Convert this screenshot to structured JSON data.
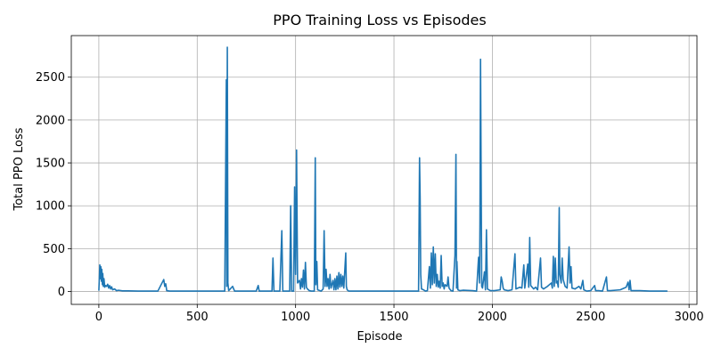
{
  "chart_data": {
    "type": "line",
    "title": "PPO Training Loss vs Episodes",
    "xlabel": "Episode",
    "ylabel": "Total PPO Loss",
    "xlim": [
      -140,
      3040
    ],
    "ylim": [
      -150,
      2985
    ],
    "xticks": [
      0,
      500,
      1000,
      1500,
      2000,
      2500,
      3000
    ],
    "yticks": [
      0,
      500,
      1000,
      1500,
      2000,
      2500
    ],
    "grid": true,
    "series": [
      {
        "color": "#1f77b4",
        "points": [
          [
            0,
            10
          ],
          [
            5,
            310
          ],
          [
            8,
            150
          ],
          [
            10,
            290
          ],
          [
            13,
            120
          ],
          [
            15,
            260
          ],
          [
            18,
            80
          ],
          [
            20,
            210
          ],
          [
            23,
            60
          ],
          [
            26,
            150
          ],
          [
            30,
            50
          ],
          [
            35,
            70
          ],
          [
            40,
            60
          ],
          [
            45,
            85
          ],
          [
            50,
            40
          ],
          [
            55,
            70
          ],
          [
            60,
            30
          ],
          [
            65,
            55
          ],
          [
            70,
            20
          ],
          [
            80,
            30
          ],
          [
            90,
            10
          ],
          [
            100,
            15
          ],
          [
            120,
            8
          ],
          [
            150,
            8
          ],
          [
            200,
            5
          ],
          [
            300,
            5
          ],
          [
            330,
            140
          ],
          [
            335,
            60
          ],
          [
            340,
            90
          ],
          [
            345,
            10
          ],
          [
            360,
            5
          ],
          [
            400,
            5
          ],
          [
            450,
            5
          ],
          [
            500,
            5
          ],
          [
            600,
            5
          ],
          [
            640,
            5
          ],
          [
            648,
            2470
          ],
          [
            650,
            60
          ],
          [
            653,
            2850
          ],
          [
            656,
            100
          ],
          [
            660,
            10
          ],
          [
            680,
            60
          ],
          [
            690,
            5
          ],
          [
            750,
            5
          ],
          [
            800,
            5
          ],
          [
            810,
            70
          ],
          [
            815,
            5
          ],
          [
            880,
            5
          ],
          [
            885,
            390
          ],
          [
            890,
            5
          ],
          [
            920,
            5
          ],
          [
            930,
            710
          ],
          [
            935,
            5
          ],
          [
            970,
            5
          ],
          [
            975,
            1000
          ],
          [
            980,
            5
          ],
          [
            990,
            5
          ],
          [
            995,
            1220
          ],
          [
            1000,
            200
          ],
          [
            1005,
            1650
          ],
          [
            1010,
            100
          ],
          [
            1020,
            130
          ],
          [
            1025,
            30
          ],
          [
            1030,
            150
          ],
          [
            1035,
            50
          ],
          [
            1040,
            250
          ],
          [
            1045,
            30
          ],
          [
            1050,
            340
          ],
          [
            1055,
            50
          ],
          [
            1060,
            30
          ],
          [
            1070,
            10
          ],
          [
            1080,
            5
          ],
          [
            1095,
            5
          ],
          [
            1100,
            1560
          ],
          [
            1103,
            80
          ],
          [
            1108,
            350
          ],
          [
            1112,
            20
          ],
          [
            1130,
            5
          ],
          [
            1140,
            30
          ],
          [
            1145,
            710
          ],
          [
            1150,
            60
          ],
          [
            1155,
            260
          ],
          [
            1160,
            60
          ],
          [
            1165,
            150
          ],
          [
            1170,
            30
          ],
          [
            1175,
            200
          ],
          [
            1180,
            40
          ],
          [
            1190,
            130
          ],
          [
            1195,
            20
          ],
          [
            1200,
            150
          ],
          [
            1205,
            20
          ],
          [
            1210,
            180
          ],
          [
            1215,
            30
          ],
          [
            1220,
            220
          ],
          [
            1225,
            50
          ],
          [
            1230,
            200
          ],
          [
            1235,
            60
          ],
          [
            1240,
            180
          ],
          [
            1245,
            40
          ],
          [
            1255,
            450
          ],
          [
            1258,
            60
          ],
          [
            1262,
            20
          ],
          [
            1270,
            5
          ],
          [
            1300,
            5
          ],
          [
            1400,
            5
          ],
          [
            1500,
            5
          ],
          [
            1600,
            5
          ],
          [
            1625,
            5
          ],
          [
            1630,
            1560
          ],
          [
            1633,
            1100
          ],
          [
            1636,
            200
          ],
          [
            1640,
            30
          ],
          [
            1650,
            20
          ],
          [
            1660,
            5
          ],
          [
            1670,
            10
          ],
          [
            1680,
            290
          ],
          [
            1685,
            40
          ],
          [
            1690,
            450
          ],
          [
            1695,
            80
          ],
          [
            1700,
            520
          ],
          [
            1705,
            100
          ],
          [
            1710,
            440
          ],
          [
            1715,
            60
          ],
          [
            1720,
            200
          ],
          [
            1725,
            50
          ],
          [
            1730,
            120
          ],
          [
            1735,
            40
          ],
          [
            1740,
            420
          ],
          [
            1745,
            60
          ],
          [
            1750,
            100
          ],
          [
            1755,
            30
          ],
          [
            1760,
            80
          ],
          [
            1770,
            60
          ],
          [
            1775,
            170
          ],
          [
            1780,
            40
          ],
          [
            1790,
            10
          ],
          [
            1800,
            5
          ],
          [
            1810,
            420
          ],
          [
            1815,
            1600
          ],
          [
            1818,
            40
          ],
          [
            1820,
            350
          ],
          [
            1825,
            20
          ],
          [
            1835,
            10
          ],
          [
            1850,
            15
          ],
          [
            1900,
            10
          ],
          [
            1920,
            5
          ],
          [
            1930,
            400
          ],
          [
            1935,
            100
          ],
          [
            1937,
            780
          ],
          [
            1940,
            2710
          ],
          [
            1943,
            1400
          ],
          [
            1946,
            60
          ],
          [
            1950,
            40
          ],
          [
            1960,
            230
          ],
          [
            1965,
            20
          ],
          [
            1970,
            720
          ],
          [
            1975,
            30
          ],
          [
            1990,
            10
          ],
          [
            2010,
            10
          ],
          [
            2040,
            20
          ],
          [
            2045,
            170
          ],
          [
            2050,
            120
          ],
          [
            2055,
            40
          ],
          [
            2060,
            20
          ],
          [
            2080,
            10
          ],
          [
            2100,
            20
          ],
          [
            2115,
            440
          ],
          [
            2120,
            30
          ],
          [
            2140,
            50
          ],
          [
            2150,
            40
          ],
          [
            2160,
            310
          ],
          [
            2165,
            40
          ],
          [
            2180,
            320
          ],
          [
            2185,
            50
          ],
          [
            2190,
            630
          ],
          [
            2195,
            70
          ],
          [
            2210,
            30
          ],
          [
            2220,
            50
          ],
          [
            2230,
            20
          ],
          [
            2245,
            390
          ],
          [
            2250,
            50
          ],
          [
            2260,
            30
          ],
          [
            2280,
            60
          ],
          [
            2300,
            100
          ],
          [
            2305,
            40
          ],
          [
            2310,
            410
          ],
          [
            2315,
            60
          ],
          [
            2320,
            390
          ],
          [
            2325,
            100
          ],
          [
            2330,
            120
          ],
          [
            2335,
            50
          ],
          [
            2340,
            980
          ],
          [
            2343,
            200
          ],
          [
            2350,
            100
          ],
          [
            2355,
            390
          ],
          [
            2360,
            140
          ],
          [
            2370,
            60
          ],
          [
            2380,
            40
          ],
          [
            2390,
            520
          ],
          [
            2395,
            100
          ],
          [
            2400,
            290
          ],
          [
            2405,
            40
          ],
          [
            2420,
            30
          ],
          [
            2440,
            60
          ],
          [
            2450,
            30
          ],
          [
            2460,
            130
          ],
          [
            2465,
            20
          ],
          [
            2480,
            5
          ],
          [
            2500,
            10
          ],
          [
            2520,
            70
          ],
          [
            2525,
            10
          ],
          [
            2540,
            10
          ],
          [
            2560,
            5
          ],
          [
            2580,
            170
          ],
          [
            2585,
            10
          ],
          [
            2600,
            10
          ],
          [
            2650,
            20
          ],
          [
            2680,
            50
          ],
          [
            2690,
            110
          ],
          [
            2695,
            20
          ],
          [
            2700,
            130
          ],
          [
            2705,
            10
          ],
          [
            2750,
            10
          ],
          [
            2800,
            5
          ],
          [
            2850,
            5
          ],
          [
            2890,
            5
          ]
        ]
      }
    ]
  }
}
